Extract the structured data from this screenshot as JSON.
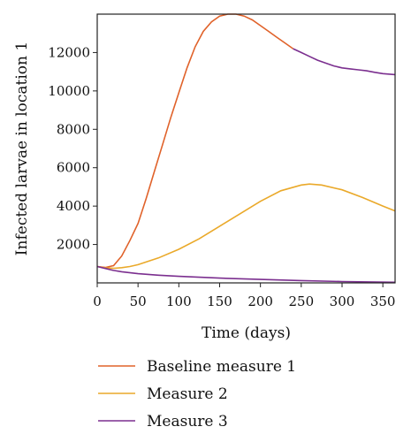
{
  "chart_data": {
    "type": "line",
    "xlabel": "Time (days)",
    "ylabel": "Infected larvae in location 1",
    "xlim": [
      0,
      365
    ],
    "ylim": [
      0,
      14000
    ],
    "x_ticks": [
      0,
      50,
      100,
      150,
      200,
      250,
      300,
      350
    ],
    "y_ticks": [
      2000,
      4000,
      6000,
      8000,
      10000,
      12000
    ],
    "grid": false,
    "legend_position": "bottom",
    "series": [
      {
        "name": "Baseline measure 1",
        "color": "#e0622a",
        "segment_colors": [
          {
            "from_x": 240,
            "color": "#7b2f8f"
          }
        ],
        "x": [
          0,
          10,
          20,
          30,
          40,
          50,
          60,
          70,
          80,
          90,
          100,
          110,
          120,
          130,
          140,
          150,
          160,
          170,
          180,
          190,
          200,
          210,
          220,
          230,
          240,
          250,
          260,
          270,
          280,
          290,
          300,
          310,
          320,
          330,
          340,
          350,
          365
        ],
        "y": [
          850,
          800,
          900,
          1400,
          2200,
          3100,
          4400,
          5800,
          7200,
          8600,
          9900,
          11200,
          12300,
          13100,
          13600,
          13900,
          14000,
          14000,
          13900,
          13700,
          13400,
          13100,
          12800,
          12500,
          12200,
          12000,
          11800,
          11600,
          11450,
          11300,
          11200,
          11150,
          11100,
          11050,
          10970,
          10900,
          10850
        ]
      },
      {
        "name": "Measure 2",
        "color": "#eaa92a",
        "x": [
          0,
          10,
          20,
          30,
          40,
          50,
          75,
          100,
          125,
          150,
          175,
          200,
          225,
          250,
          260,
          275,
          300,
          325,
          350,
          365
        ],
        "y": [
          850,
          780,
          760,
          790,
          850,
          950,
          1300,
          1750,
          2300,
          2950,
          3600,
          4250,
          4800,
          5100,
          5150,
          5100,
          4850,
          4450,
          4000,
          3750
        ]
      },
      {
        "name": "Measure 3",
        "color": "#7b2f8f",
        "x": [
          0,
          10,
          20,
          30,
          50,
          75,
          100,
          150,
          200,
          250,
          300,
          365
        ],
        "y": [
          850,
          750,
          650,
          580,
          480,
          400,
          340,
          250,
          180,
          120,
          70,
          30
        ]
      }
    ]
  }
}
